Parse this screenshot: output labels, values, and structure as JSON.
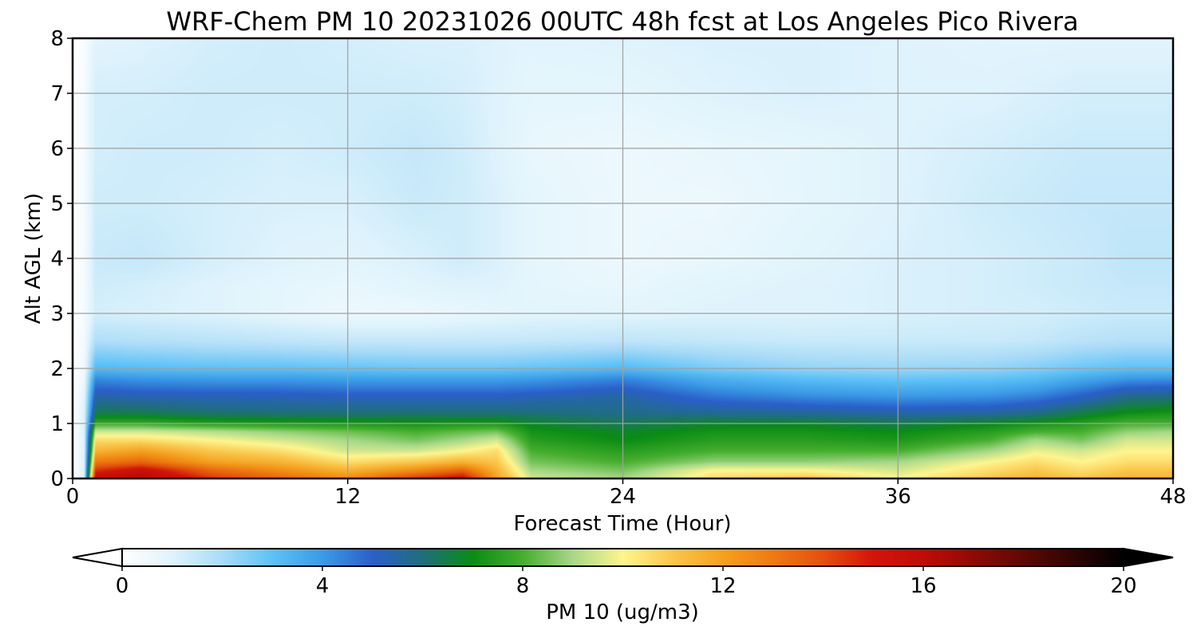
{
  "chart_data": {
    "type": "heatmap",
    "title": "WRF-Chem PM 10  20231026 00UTC 48h fcst at Los Angeles Pico Rivera",
    "xlabel": "Forecast Time (Hour)",
    "ylabel": "Alt AGL (km)",
    "xlim": [
      0,
      48
    ],
    "ylim": [
      0,
      8
    ],
    "x_ticks": [
      0,
      12,
      24,
      36,
      48
    ],
    "x_tick_labels": [
      "0",
      "12",
      "24",
      "36",
      "48"
    ],
    "y_ticks": [
      0,
      1,
      2,
      3,
      4,
      5,
      6,
      7,
      8
    ],
    "y_tick_labels": [
      "0",
      "1",
      "2",
      "3",
      "4",
      "5",
      "6",
      "7",
      "8"
    ],
    "grid": true,
    "colorbar": {
      "label": "PM 10  (ug/m3)",
      "range": [
        0,
        20
      ],
      "ticks": [
        0,
        4,
        8,
        12,
        16,
        20
      ],
      "tick_labels": [
        "0",
        "4",
        "8",
        "12",
        "16",
        "20"
      ],
      "extend": "both",
      "colors": [
        {
          "v": 0,
          "c": "#ffffff"
        },
        {
          "v": 1,
          "c": "#dff3fc"
        },
        {
          "v": 2,
          "c": "#a9dcf7"
        },
        {
          "v": 3,
          "c": "#5cc2f7"
        },
        {
          "v": 4,
          "c": "#3b9be6"
        },
        {
          "v": 5,
          "c": "#2b5fc9"
        },
        {
          "v": 6,
          "c": "#1f6f7a"
        },
        {
          "v": 7,
          "c": "#0a8c14"
        },
        {
          "v": 8,
          "c": "#46ae2e"
        },
        {
          "v": 9,
          "c": "#a8d888"
        },
        {
          "v": 10,
          "c": "#fff58e"
        },
        {
          "v": 11,
          "c": "#fbc64a"
        },
        {
          "v": 12,
          "c": "#f6a01f"
        },
        {
          "v": 13,
          "c": "#ee7a12"
        },
        {
          "v": 14,
          "c": "#e4500e"
        },
        {
          "v": 15,
          "c": "#d3140b"
        },
        {
          "v": 16,
          "c": "#bf0d06"
        },
        {
          "v": 17,
          "c": "#8f0a04"
        },
        {
          "v": 18,
          "c": "#5e0903"
        },
        {
          "v": 19,
          "c": "#2f0402"
        },
        {
          "v": 20,
          "c": "#000000"
        }
      ]
    },
    "time_hours": [
      0,
      0.5,
      1,
      3,
      6,
      9,
      12,
      15,
      17,
      18.5,
      20,
      24,
      28,
      32,
      36,
      40,
      42,
      44,
      46,
      48
    ],
    "altitudes_km": [
      0,
      0.15,
      0.3,
      0.5,
      0.7,
      0.85,
      1.0,
      1.2,
      1.5,
      1.8,
      2.0,
      2.5,
      3,
      3.5,
      4,
      5,
      6,
      7,
      8
    ],
    "values": [
      [
        0,
        1.0,
        16.0,
        16.5,
        14.5,
        13.5,
        12.5,
        14.5,
        15.5,
        12.0,
        9.5,
        9.0,
        10.5,
        11.0,
        10.0,
        11.0,
        11.5,
        11.0,
        11.5,
        11.5
      ],
      [
        0,
        1.0,
        14.5,
        15.5,
        13.5,
        12.5,
        11.5,
        12.5,
        13.5,
        11.5,
        9.0,
        8.5,
        10.0,
        10.0,
        9.5,
        10.5,
        11.0,
        10.5,
        11.0,
        11.0
      ],
      [
        0,
        1.0,
        13.0,
        13.5,
        12.0,
        11.5,
        10.5,
        11.0,
        11.5,
        11.0,
        8.5,
        8.0,
        8.8,
        8.8,
        9.0,
        10.0,
        10.5,
        10.0,
        10.5,
        10.5
      ],
      [
        0,
        1.0,
        11.5,
        12.0,
        11.0,
        10.5,
        9.5,
        9.5,
        10.0,
        10.5,
        8.0,
        7.5,
        8.0,
        8.0,
        8.0,
        9.0,
        9.8,
        9.5,
        10.0,
        10.0
      ],
      [
        0,
        1.0,
        10.5,
        10.5,
        10.0,
        9.5,
        9.0,
        8.5,
        9.0,
        9.5,
        7.5,
        7.0,
        7.5,
        7.5,
        7.3,
        8.0,
        9.0,
        8.5,
        9.5,
        9.5
      ],
      [
        0,
        1.0,
        9.5,
        9.5,
        9.2,
        8.8,
        8.4,
        8.0,
        8.3,
        8.5,
        7.2,
        6.8,
        7.2,
        7.2,
        7.0,
        7.5,
        8.0,
        8.0,
        8.8,
        9.0
      ],
      [
        0,
        1.0,
        7.8,
        7.8,
        7.5,
        7.4,
        7.3,
        7.2,
        7.3,
        7.3,
        6.8,
        6.4,
        6.8,
        6.8,
        6.5,
        6.9,
        7.2,
        7.5,
        8.0,
        8.0
      ],
      [
        0,
        1.0,
        6.4,
        6.4,
        6.1,
        6.0,
        6.0,
        6.0,
        6.0,
        6.0,
        6.0,
        5.8,
        5.7,
        5.6,
        5.4,
        5.5,
        5.8,
        6.5,
        7.0,
        7.2
      ],
      [
        0,
        0.8,
        5.4,
        5.3,
        5.2,
        5.2,
        5.1,
        5.1,
        5.1,
        5.1,
        5.2,
        5.5,
        4.6,
        4.2,
        4.0,
        4.1,
        4.4,
        5.0,
        5.8,
        5.9
      ],
      [
        0,
        0.6,
        4.3,
        4.1,
        4.0,
        4.0,
        3.9,
        3.9,
        3.9,
        3.9,
        4.0,
        4.4,
        3.5,
        3.1,
        2.9,
        3.0,
        3.2,
        3.7,
        4.1,
        4.2
      ],
      [
        0,
        0.5,
        3.2,
        3.1,
        3.0,
        3.0,
        2.9,
        2.8,
        2.8,
        2.8,
        2.9,
        3.2,
        2.6,
        2.3,
        2.2,
        2.3,
        2.5,
        2.8,
        3.0,
        3.0
      ],
      [
        0,
        0.4,
        1.9,
        1.8,
        1.7,
        1.6,
        1.5,
        1.5,
        1.5,
        1.5,
        1.5,
        1.6,
        1.5,
        1.4,
        1.4,
        1.4,
        1.5,
        1.7,
        1.8,
        1.8
      ],
      [
        0,
        0.3,
        1.2,
        1.1,
        1.0,
        0.8,
        0.6,
        0.6,
        0.7,
        0.8,
        0.9,
        0.9,
        1.0,
        1.0,
        1.1,
        1.2,
        1.2,
        1.3,
        1.4,
        1.4
      ],
      [
        0,
        0.3,
        1.3,
        1.2,
        1.0,
        0.8,
        0.7,
        0.9,
        1.0,
        1.0,
        0.8,
        0.7,
        0.9,
        1.0,
        1.1,
        1.2,
        1.3,
        1.4,
        1.5,
        1.5
      ],
      [
        0,
        0.3,
        1.4,
        1.5,
        1.2,
        1.0,
        0.9,
        1.1,
        1.3,
        1.1,
        0.8,
        0.6,
        0.7,
        0.9,
        1.1,
        1.2,
        1.3,
        1.4,
        1.6,
        1.6
      ],
      [
        0,
        0.3,
        1.3,
        1.3,
        1.2,
        1.1,
        1.1,
        1.4,
        1.3,
        1.1,
        0.8,
        0.6,
        0.6,
        0.8,
        1.0,
        1.3,
        1.4,
        1.5,
        1.5,
        1.5
      ],
      [
        0,
        0.3,
        1.2,
        1.3,
        1.3,
        1.2,
        1.3,
        1.5,
        1.3,
        1.0,
        0.7,
        0.6,
        0.7,
        0.8,
        1.0,
        1.2,
        1.3,
        1.4,
        1.4,
        1.4
      ],
      [
        0,
        0.3,
        1.2,
        1.2,
        1.3,
        1.3,
        1.3,
        1.3,
        1.2,
        1.0,
        0.8,
        0.8,
        1.0,
        1.1,
        1.0,
        1.0,
        1.1,
        1.2,
        1.2,
        1.2
      ],
      [
        0,
        0.2,
        0.9,
        1.0,
        1.2,
        1.3,
        1.2,
        1.1,
        1.1,
        1.0,
        0.9,
        1.0,
        1.1,
        1.1,
        1.0,
        0.9,
        0.9,
        0.9,
        0.9,
        0.9
      ]
    ]
  }
}
